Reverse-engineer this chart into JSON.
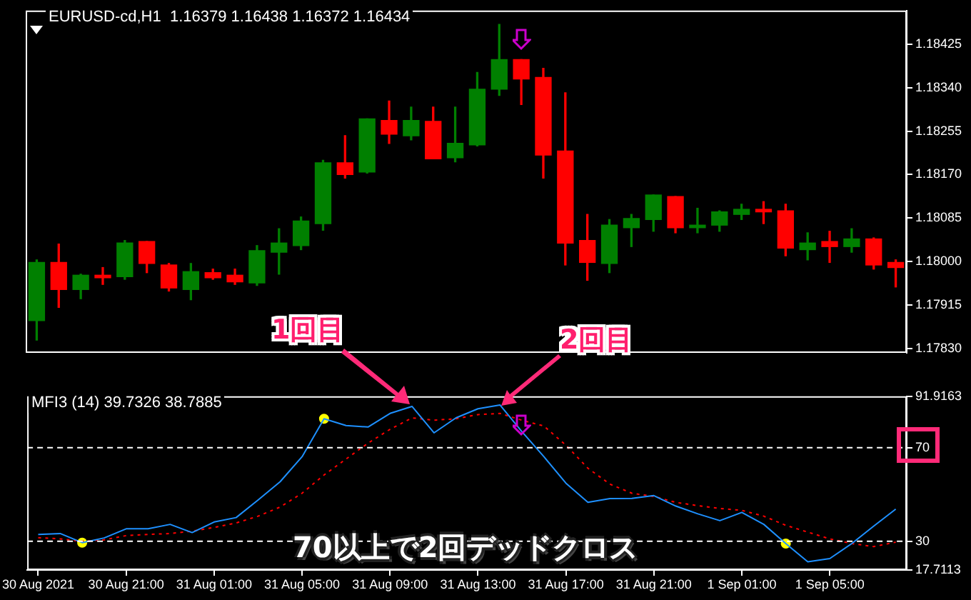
{
  "chart_data": [
    {
      "type": "candlestick",
      "title": "EURUSD-cd,H1  1.16379 1.16438 1.16372 1.16434",
      "ohlc": [
        [
          1.17884,
          1.18003,
          1.17846,
          1.17998
        ],
        [
          1.17998,
          1.18034,
          1.1791,
          1.17945
        ],
        [
          1.17945,
          1.17975,
          1.17927,
          1.17973
        ],
        [
          1.17973,
          1.17988,
          1.17955,
          1.17968
        ],
        [
          1.1797,
          1.18041,
          1.17965,
          1.18036
        ],
        [
          1.18039,
          1.18039,
          1.17978,
          1.17996
        ],
        [
          1.17993,
          1.17996,
          1.17942,
          1.17948
        ],
        [
          1.17945,
          1.17996,
          1.17925,
          1.1798
        ],
        [
          1.17978,
          1.17985,
          1.17965,
          1.17968
        ],
        [
          1.17973,
          1.17985,
          1.17955,
          1.1796
        ],
        [
          1.17958,
          1.18031,
          1.17953,
          1.18021
        ],
        [
          1.18018,
          1.18064,
          1.17975,
          1.18036
        ],
        [
          1.18031,
          1.18087,
          1.18023,
          1.18079
        ],
        [
          1.18074,
          1.18198,
          1.18061,
          1.18193
        ],
        [
          1.18193,
          1.18246,
          1.18163,
          1.1817
        ],
        [
          1.18175,
          1.18279,
          1.18173,
          1.18279
        ],
        [
          1.18276,
          1.18314,
          1.18231,
          1.18249
        ],
        [
          1.18246,
          1.18302,
          1.18238,
          1.18276
        ],
        [
          1.18274,
          1.18302,
          1.18201,
          1.18201
        ],
        [
          1.18203,
          1.18302,
          1.18195,
          1.18231
        ],
        [
          1.18228,
          1.1837,
          1.18226,
          1.18337
        ],
        [
          1.18337,
          1.18464,
          1.18325,
          1.18395
        ],
        [
          1.18395,
          1.18395,
          1.18307,
          1.18357
        ],
        [
          1.1836,
          1.18378,
          1.18163,
          1.18208
        ],
        [
          1.18216,
          1.1833,
          1.17993,
          1.18036
        ],
        [
          1.18041,
          1.18092,
          1.17963,
          1.17998
        ],
        [
          1.17996,
          1.18082,
          1.17978,
          1.18071
        ],
        [
          1.18066,
          1.18092,
          1.18029,
          1.18084
        ],
        [
          1.18082,
          1.1813,
          1.18059,
          1.1813
        ],
        [
          1.18127,
          1.18127,
          1.18056,
          1.18066
        ],
        [
          1.18066,
          1.18104,
          1.18056,
          1.18071
        ],
        [
          1.18071,
          1.18099,
          1.18059,
          1.18097
        ],
        [
          1.18092,
          1.18112,
          1.18082,
          1.18102
        ],
        [
          1.18102,
          1.18117,
          1.18074,
          1.18097
        ],
        [
          1.18099,
          1.18112,
          1.18011,
          1.18026
        ],
        [
          1.18023,
          1.18056,
          1.18003,
          1.18036
        ],
        [
          1.18039,
          1.18059,
          1.17998,
          1.18029
        ],
        [
          1.18029,
          1.18064,
          1.18018,
          1.18044
        ],
        [
          1.18044,
          1.18046,
          1.17985,
          1.17993
        ],
        [
          1.17998,
          1.18003,
          1.1795,
          1.17988
        ]
      ],
      "colors": [
        "#008000",
        "#ff0000",
        "#008000",
        "#ff0000",
        "#008000",
        "#ff0000",
        "#ff0000",
        "#008000",
        "#ff0000",
        "#ff0000",
        "#008000",
        "#008000",
        "#008000",
        "#008000",
        "#ff0000",
        "#008000",
        "#ff0000",
        "#008000",
        "#ff0000",
        "#008000",
        "#008000",
        "#008000",
        "#ff0000",
        "#ff0000",
        "#ff0000",
        "#ff0000",
        "#008000",
        "#008000",
        "#008000",
        "#ff0000",
        "#008000",
        "#008000",
        "#008000",
        "#ff0000",
        "#ff0000",
        "#008000",
        "#ff0000",
        "#008000",
        "#ff0000",
        "#ff0000"
      ],
      "ylim": [
        1.17821,
        1.18491
      ],
      "yticks": [
        {
          "value": 1.1783,
          "label": "1.17830"
        },
        {
          "value": 1.17915,
          "label": "1.17915"
        },
        {
          "value": 1.18,
          "label": "1.18000"
        },
        {
          "value": 1.18085,
          "label": "1.18085"
        },
        {
          "value": 1.1817,
          "label": "1.18170"
        },
        {
          "value": 1.18255,
          "label": "1.18255"
        },
        {
          "value": 1.1834,
          "label": "1.18340"
        },
        {
          "value": 1.18425,
          "label": "1.18425"
        }
      ],
      "grid": false,
      "legend": false,
      "tick_labels": "y"
    },
    {
      "type": "line",
      "title": "MFI3 (14) 39.7326 38.7885",
      "categories": [
        "30 Aug 2021",
        null,
        null,
        null,
        "30 Aug 21:00",
        null,
        null,
        null,
        "31 Aug 01:00",
        null,
        null,
        null,
        "31 Aug 05:00",
        null,
        null,
        null,
        "31 Aug 09:00",
        null,
        null,
        null,
        "31 Aug 13:00",
        null,
        null,
        null,
        "31 Aug 17:00",
        null,
        null,
        null,
        "31 Aug 21:00",
        null,
        null,
        null,
        "1 Sep 01:00",
        null,
        null,
        null,
        "1 Sep 05:00",
        null,
        null,
        null
      ],
      "series": [
        {
          "type": "line",
          "color": "#1e90ff",
          "line_style": "solid",
          "values": [
            32.9,
            33.3,
            29.4,
            31.4,
            35.3,
            35.3,
            37.2,
            33.7,
            38.2,
            40.1,
            47.6,
            55.4,
            66.1,
            82.3,
            79.4,
            78.8,
            84.6,
            87.6,
            76.3,
            82.7,
            86.6,
            88.2,
            76.8,
            66.1,
            54.8,
            46.6,
            48.2,
            48.3,
            49.5,
            45.0,
            41.7,
            38.8,
            42.3,
            37.2,
            29.0,
            21.2,
            22.6,
            29.0,
            36.5,
            43.7
          ]
        },
        {
          "type": "line",
          "color": "#ff0000",
          "line_style": "dotted",
          "values": [
            31.5,
            31.0,
            30.0,
            30.6,
            32.4,
            32.9,
            33.3,
            34.3,
            35.9,
            37.8,
            40.7,
            44.6,
            50.5,
            58.3,
            65.1,
            71.9,
            77.8,
            82.7,
            81.7,
            82.3,
            84.1,
            84.6,
            81.7,
            79.2,
            71.0,
            61.2,
            54.4,
            50.5,
            49.1,
            46.6,
            45.2,
            44.0,
            43.2,
            40.7,
            36.8,
            33.9,
            31.0,
            29.0,
            27.7,
            29.6
          ]
        },
        {
          "type": "scatter",
          "color": "#ffff00",
          "marker": "circle",
          "values": [
            null,
            null,
            29.4,
            null,
            null,
            null,
            null,
            null,
            null,
            null,
            null,
            null,
            null,
            82.3,
            null,
            null,
            null,
            null,
            null,
            null,
            null,
            null,
            null,
            null,
            null,
            null,
            null,
            null,
            null,
            null,
            null,
            null,
            null,
            null,
            29.0,
            null,
            null,
            null,
            null,
            null
          ]
        }
      ],
      "ylim": [
        17.7113,
        91.9163
      ],
      "yticks": [
        17.7113,
        30,
        70,
        91.9163
      ],
      "ref_lines": [
        {
          "axis": "y",
          "value": 70,
          "label": null,
          "color": "#ffffff",
          "line_style": "dashed"
        },
        {
          "axis": "y",
          "value": 30,
          "label": null,
          "color": "#ffffff",
          "line_style": "dashed"
        }
      ],
      "annotations": [
        "1回目",
        "2回目",
        "70以上で2回デッドクロス"
      ],
      "grid": false,
      "legend": false,
      "marker": "none"
    }
  ]
}
